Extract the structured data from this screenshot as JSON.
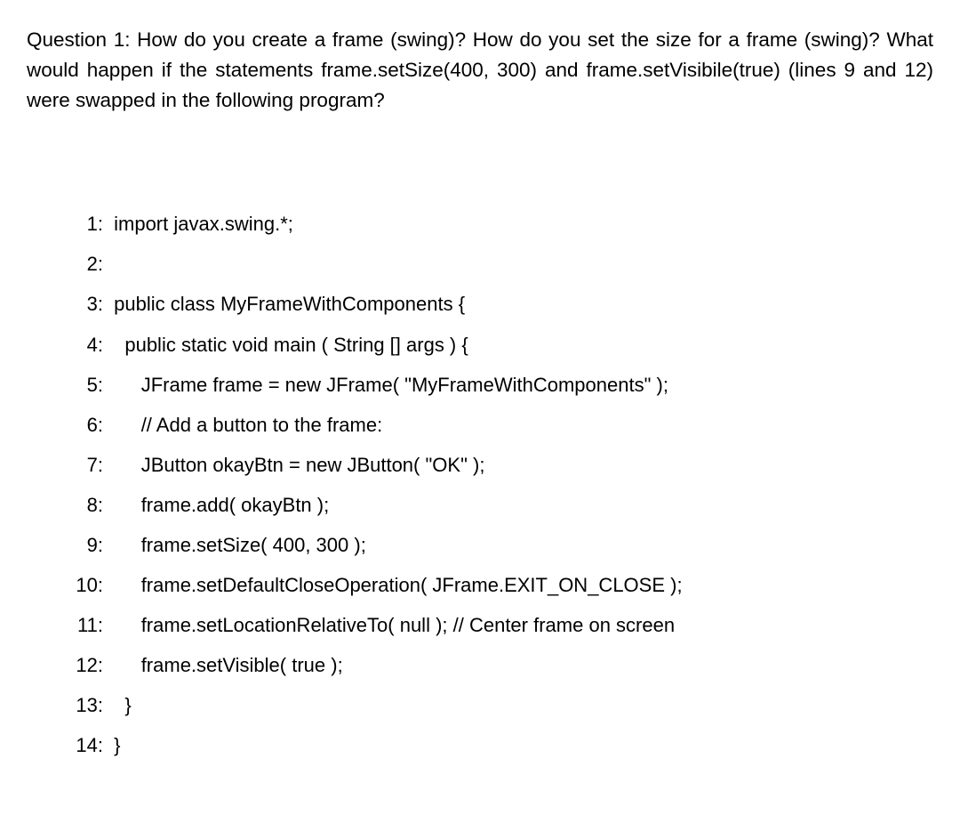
{
  "question": {
    "text": "Question 1: How do you create a frame (swing)? How do you set the size for a frame (swing)? What would happen if the statements frame.setSize(400, 300) and frame.setVisibile(true) (lines 9 and 12) were swapped in the following program?"
  },
  "code": {
    "font_family": "Arial, Helvetica, sans-serif",
    "font_size": 22,
    "background_color": "#ffffff",
    "text_color": "#000000",
    "lines": [
      {
        "num": "1:",
        "indent": " ",
        "content": "import javax.swing.*;"
      },
      {
        "num": "2:",
        "indent": "",
        "content": ""
      },
      {
        "num": "3:",
        "indent": " ",
        "content": "public class MyFrameWithComponents {"
      },
      {
        "num": "4:",
        "indent": "   ",
        "content": "public static void main ( String [] args ) {"
      },
      {
        "num": "5:",
        "indent": "      ",
        "content": "JFrame frame = new JFrame( \"MyFrameWithComponents\" );"
      },
      {
        "num": "6:",
        "indent": "      ",
        "content": "// Add a button to the frame:"
      },
      {
        "num": "7:",
        "indent": "      ",
        "content": "JButton okayBtn = new JButton( \"OK\" );"
      },
      {
        "num": "8:",
        "indent": "      ",
        "content": "frame.add( okayBtn );"
      },
      {
        "num": "9:",
        "indent": "      ",
        "content": "frame.setSize( 400, 300 );"
      },
      {
        "num": "10:",
        "indent": "      ",
        "content": "frame.setDefaultCloseOperation( JFrame.EXIT_ON_CLOSE );"
      },
      {
        "num": "11:",
        "indent": "      ",
        "content": "frame.setLocationRelativeTo( null ); // Center frame on screen"
      },
      {
        "num": "12:",
        "indent": "      ",
        "content": "frame.setVisible( true );"
      },
      {
        "num": "13:",
        "indent": "   ",
        "content": "}"
      },
      {
        "num": "14:",
        "indent": " ",
        "content": "}"
      }
    ]
  }
}
